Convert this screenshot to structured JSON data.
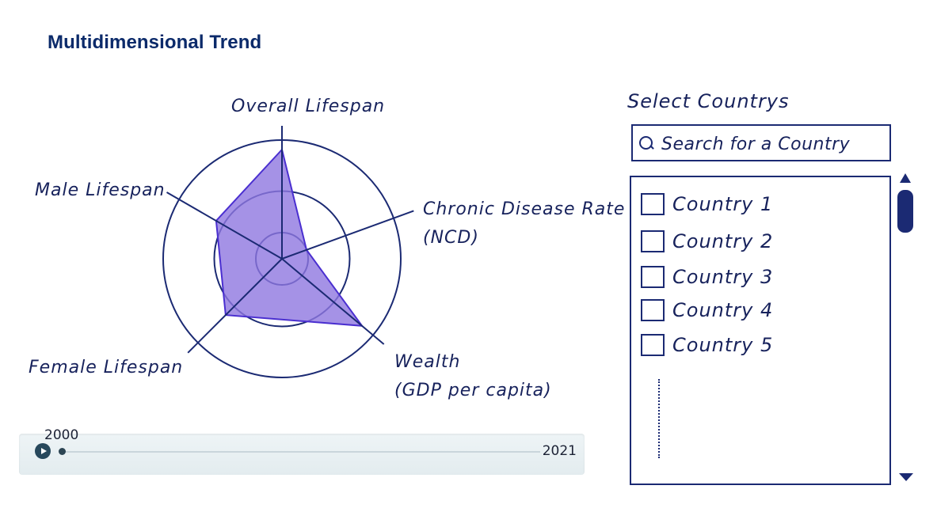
{
  "header": {
    "title": "Multidimensional Trend"
  },
  "radar": {
    "axes": [
      {
        "label_lines": [
          "Overall Lifespan"
        ],
        "value": 0.92
      },
      {
        "label_lines": [
          "Chronic Disease Rate",
          "(NCD)"
        ],
        "value": 0.22
      },
      {
        "label_lines": [
          "Wealth",
          "(GDP per capita)"
        ],
        "value": 0.88
      },
      {
        "label_lines": [
          "Female Lifespan"
        ],
        "value": 0.67
      },
      {
        "label_lines": [
          "Male Lifespan"
        ],
        "value": 0.64
      }
    ],
    "ring_levels": [
      0.22,
      0.57,
      1.0
    ],
    "colors": {
      "stroke": "#1b2a73",
      "fill": "#8e77e0",
      "fill_stroke": "#4a2fd0"
    }
  },
  "timeline": {
    "start_year": "2000",
    "end_year": "2021",
    "position": 0.0,
    "colors": {
      "track": "#c9d5db",
      "button": "#27485c"
    }
  },
  "country_panel": {
    "title": "Select Countrys",
    "search": {
      "placeholder": "Search for a Country",
      "value": ""
    },
    "countries": [
      {
        "label": "Country 1",
        "checked": false
      },
      {
        "label": "Country 2",
        "checked": false
      },
      {
        "label": "Country 3",
        "checked": false
      },
      {
        "label": "Country 4",
        "checked": false
      },
      {
        "label": "Country 5",
        "checked": false
      }
    ]
  }
}
